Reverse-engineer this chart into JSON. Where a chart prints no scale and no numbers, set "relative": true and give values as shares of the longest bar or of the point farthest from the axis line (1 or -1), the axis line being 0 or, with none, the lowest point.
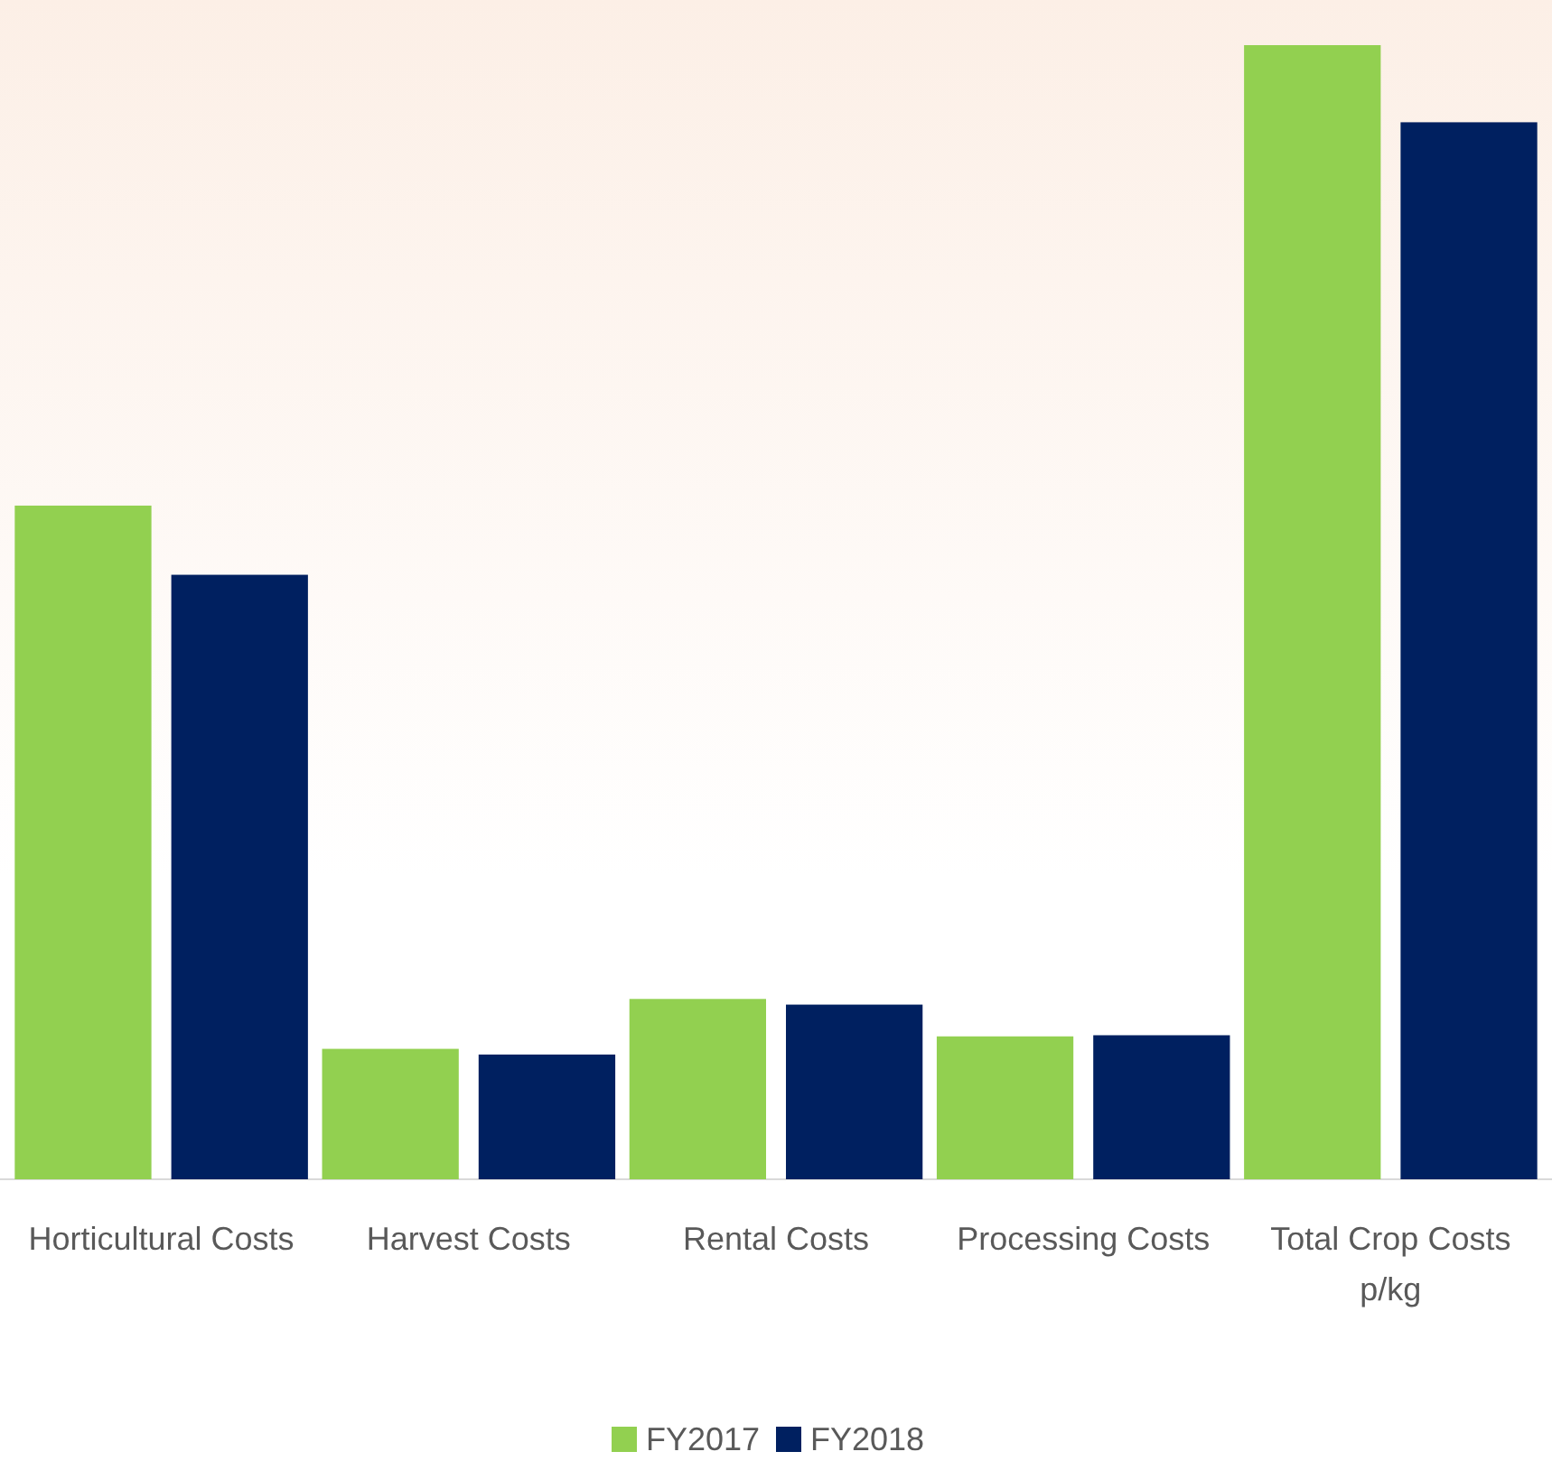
{
  "chart_data": {
    "type": "bar",
    "relative": true,
    "categories": [
      "Horticultural Costs",
      "Harvest Costs",
      "Rental Costs",
      "Processing Costs",
      "Total Crop Costs p/kg"
    ],
    "series": [
      {
        "name": "FY2017",
        "color": "#92d050",
        "values": [
          0.594,
          0.115,
          0.159,
          0.126,
          1
        ]
      },
      {
        "name": "FY2018",
        "color": "#002060",
        "values": [
          0.533,
          0.11,
          0.154,
          0.127,
          0.932
        ]
      }
    ],
    "legend": "bottom"
  }
}
